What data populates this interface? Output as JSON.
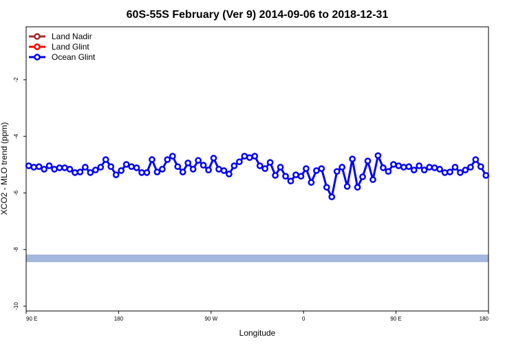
{
  "chart_data": {
    "type": "line",
    "title": "60S-55S February (Ver 9)   2014-09-06 to 2018-12-31",
    "x_label": "Longitude",
    "y_label": "XCO2 - MLO trend (ppm)",
    "xlim": [
      90,
      540
    ],
    "xticks": [
      {
        "value": 90,
        "label": "90 E"
      },
      {
        "value": 180,
        "label": "180"
      },
      {
        "value": 270,
        "label": "90 W"
      },
      {
        "value": 360,
        "label": "0"
      },
      {
        "value": 450,
        "label": "90 E"
      },
      {
        "value": 540,
        "label": "180"
      }
    ],
    "ylim": [
      -10.17,
      -0.13
    ],
    "yticks": [
      -10,
      -8,
      -6,
      -4,
      -2
    ],
    "legend": "top-left",
    "x": [
      92.5,
      97.5,
      102.5,
      107.5,
      112.5,
      117.5,
      122.5,
      127.5,
      132.5,
      137.5,
      142.5,
      147.5,
      152.5,
      157.5,
      162.5,
      167.5,
      172.5,
      177.5,
      182.5,
      187.5,
      192.5,
      197.5,
      202.5,
      207.5,
      212.5,
      217.5,
      222.5,
      227.5,
      232.5,
      237.5,
      242.5,
      247.5,
      252.5,
      257.5,
      262.5,
      267.5,
      272.5,
      277.5,
      282.5,
      287.5,
      292.5,
      297.5,
      302.5,
      307.5,
      312.5,
      317.5,
      322.5,
      327.5,
      332.5,
      337.5,
      342.5,
      347.5,
      352.5,
      357.5,
      362.5,
      367.5,
      372.5,
      377.5,
      382.5,
      387.5,
      392.5,
      397.5,
      402.5,
      407.5,
      412.5,
      417.5,
      422.5,
      427.5,
      432.5,
      437.5,
      442.5,
      447.5,
      452.5,
      457.5,
      462.5,
      467.5,
      472.5,
      477.5,
      482.5,
      487.5,
      492.5,
      497.5,
      502.5,
      507.5,
      512.5,
      517.5,
      522.5,
      527.5,
      532.5,
      537.5
    ],
    "series": [
      {
        "name": "Land Nadir",
        "color": "#a52a2a"
      },
      {
        "name": "Land Glint",
        "color": "#ff0000"
      },
      {
        "name": "Ocean Glint",
        "color": "#0000ff",
        "values": [
          -5.04,
          -5.09,
          -5.07,
          -5.16,
          -5.04,
          -5.16,
          -5.11,
          -5.11,
          -5.16,
          -5.28,
          -5.26,
          -5.09,
          -5.28,
          -5.19,
          -5.09,
          -4.82,
          -5.07,
          -5.36,
          -5.21,
          -4.99,
          -5.07,
          -5.11,
          -5.28,
          -5.28,
          -4.82,
          -5.26,
          -5.16,
          -4.82,
          -4.7,
          -5.07,
          -5.26,
          -4.94,
          -5.16,
          -4.85,
          -5.02,
          -5.19,
          -4.77,
          -5.16,
          -5.21,
          -5.33,
          -5.04,
          -4.9,
          -4.7,
          -4.75,
          -4.7,
          -5.04,
          -5.14,
          -4.92,
          -5.38,
          -5.09,
          -5.41,
          -5.58,
          -5.36,
          -5.41,
          -5.14,
          -5.63,
          -5.21,
          -5.14,
          -5.8,
          -6.14,
          -5.24,
          -5.09,
          -5.77,
          -4.8,
          -5.8,
          -5.43,
          -4.87,
          -5.53,
          -4.68,
          -5.11,
          -5.24,
          -4.99,
          -5.04,
          -5.09,
          -5.07,
          -5.19,
          -5.04,
          -5.19,
          -5.09,
          -5.11,
          -5.16,
          -5.28,
          -5.26,
          -5.09,
          -5.28,
          -5.19,
          -5.09,
          -4.82,
          -5.07,
          -5.38
        ]
      }
    ]
  }
}
